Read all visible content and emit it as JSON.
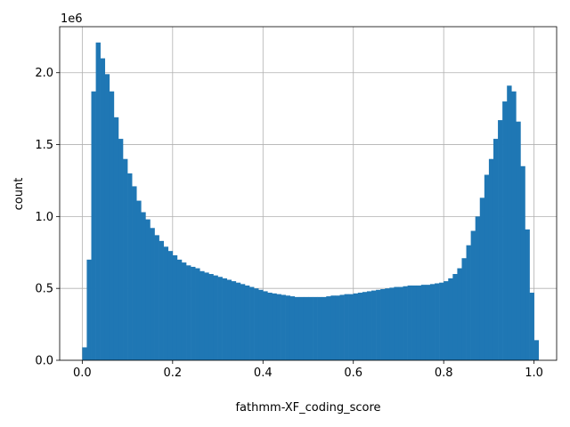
{
  "chart_data": {
    "type": "bar",
    "title": "",
    "xlabel": "fathmm-XF_coding_score",
    "ylabel": "count",
    "y_multiplier_label": "1e6",
    "xlim": [
      -0.05,
      1.05
    ],
    "ylim": [
      0,
      2.32
    ],
    "y_unit_multiplier": 1000000,
    "x_ticks": [
      0.0,
      0.2,
      0.4,
      0.6,
      0.8,
      1.0
    ],
    "x_tick_labels": [
      "0.0",
      "0.2",
      "0.4",
      "0.6",
      "0.8",
      "1.0"
    ],
    "y_ticks": [
      0.0,
      0.5,
      1.0,
      1.5,
      2.0
    ],
    "y_tick_labels": [
      "0.0",
      "0.5",
      "1.0",
      "1.5",
      "2.0"
    ],
    "grid": true,
    "bar_color": "#1f77b4",
    "bin_start": 0.0,
    "bin_width": 0.01,
    "values": [
      0.09,
      0.7,
      1.87,
      2.21,
      2.1,
      1.99,
      1.87,
      1.69,
      1.54,
      1.4,
      1.3,
      1.21,
      1.11,
      1.03,
      0.98,
      0.92,
      0.87,
      0.83,
      0.79,
      0.76,
      0.73,
      0.7,
      0.68,
      0.66,
      0.65,
      0.64,
      0.62,
      0.61,
      0.6,
      0.59,
      0.58,
      0.57,
      0.56,
      0.55,
      0.54,
      0.53,
      0.52,
      0.51,
      0.5,
      0.49,
      0.48,
      0.47,
      0.465,
      0.46,
      0.455,
      0.45,
      0.445,
      0.44,
      0.44,
      0.44,
      0.44,
      0.44,
      0.44,
      0.44,
      0.445,
      0.45,
      0.45,
      0.455,
      0.46,
      0.46,
      0.465,
      0.47,
      0.475,
      0.48,
      0.485,
      0.49,
      0.495,
      0.5,
      0.505,
      0.51,
      0.51,
      0.515,
      0.52,
      0.52,
      0.52,
      0.525,
      0.525,
      0.53,
      0.535,
      0.54,
      0.55,
      0.57,
      0.6,
      0.64,
      0.71,
      0.8,
      0.9,
      1.0,
      1.13,
      1.29,
      1.4,
      1.54,
      1.67,
      1.8,
      1.91,
      1.87,
      1.66,
      1.35,
      0.91,
      0.47,
      0.14
    ]
  }
}
